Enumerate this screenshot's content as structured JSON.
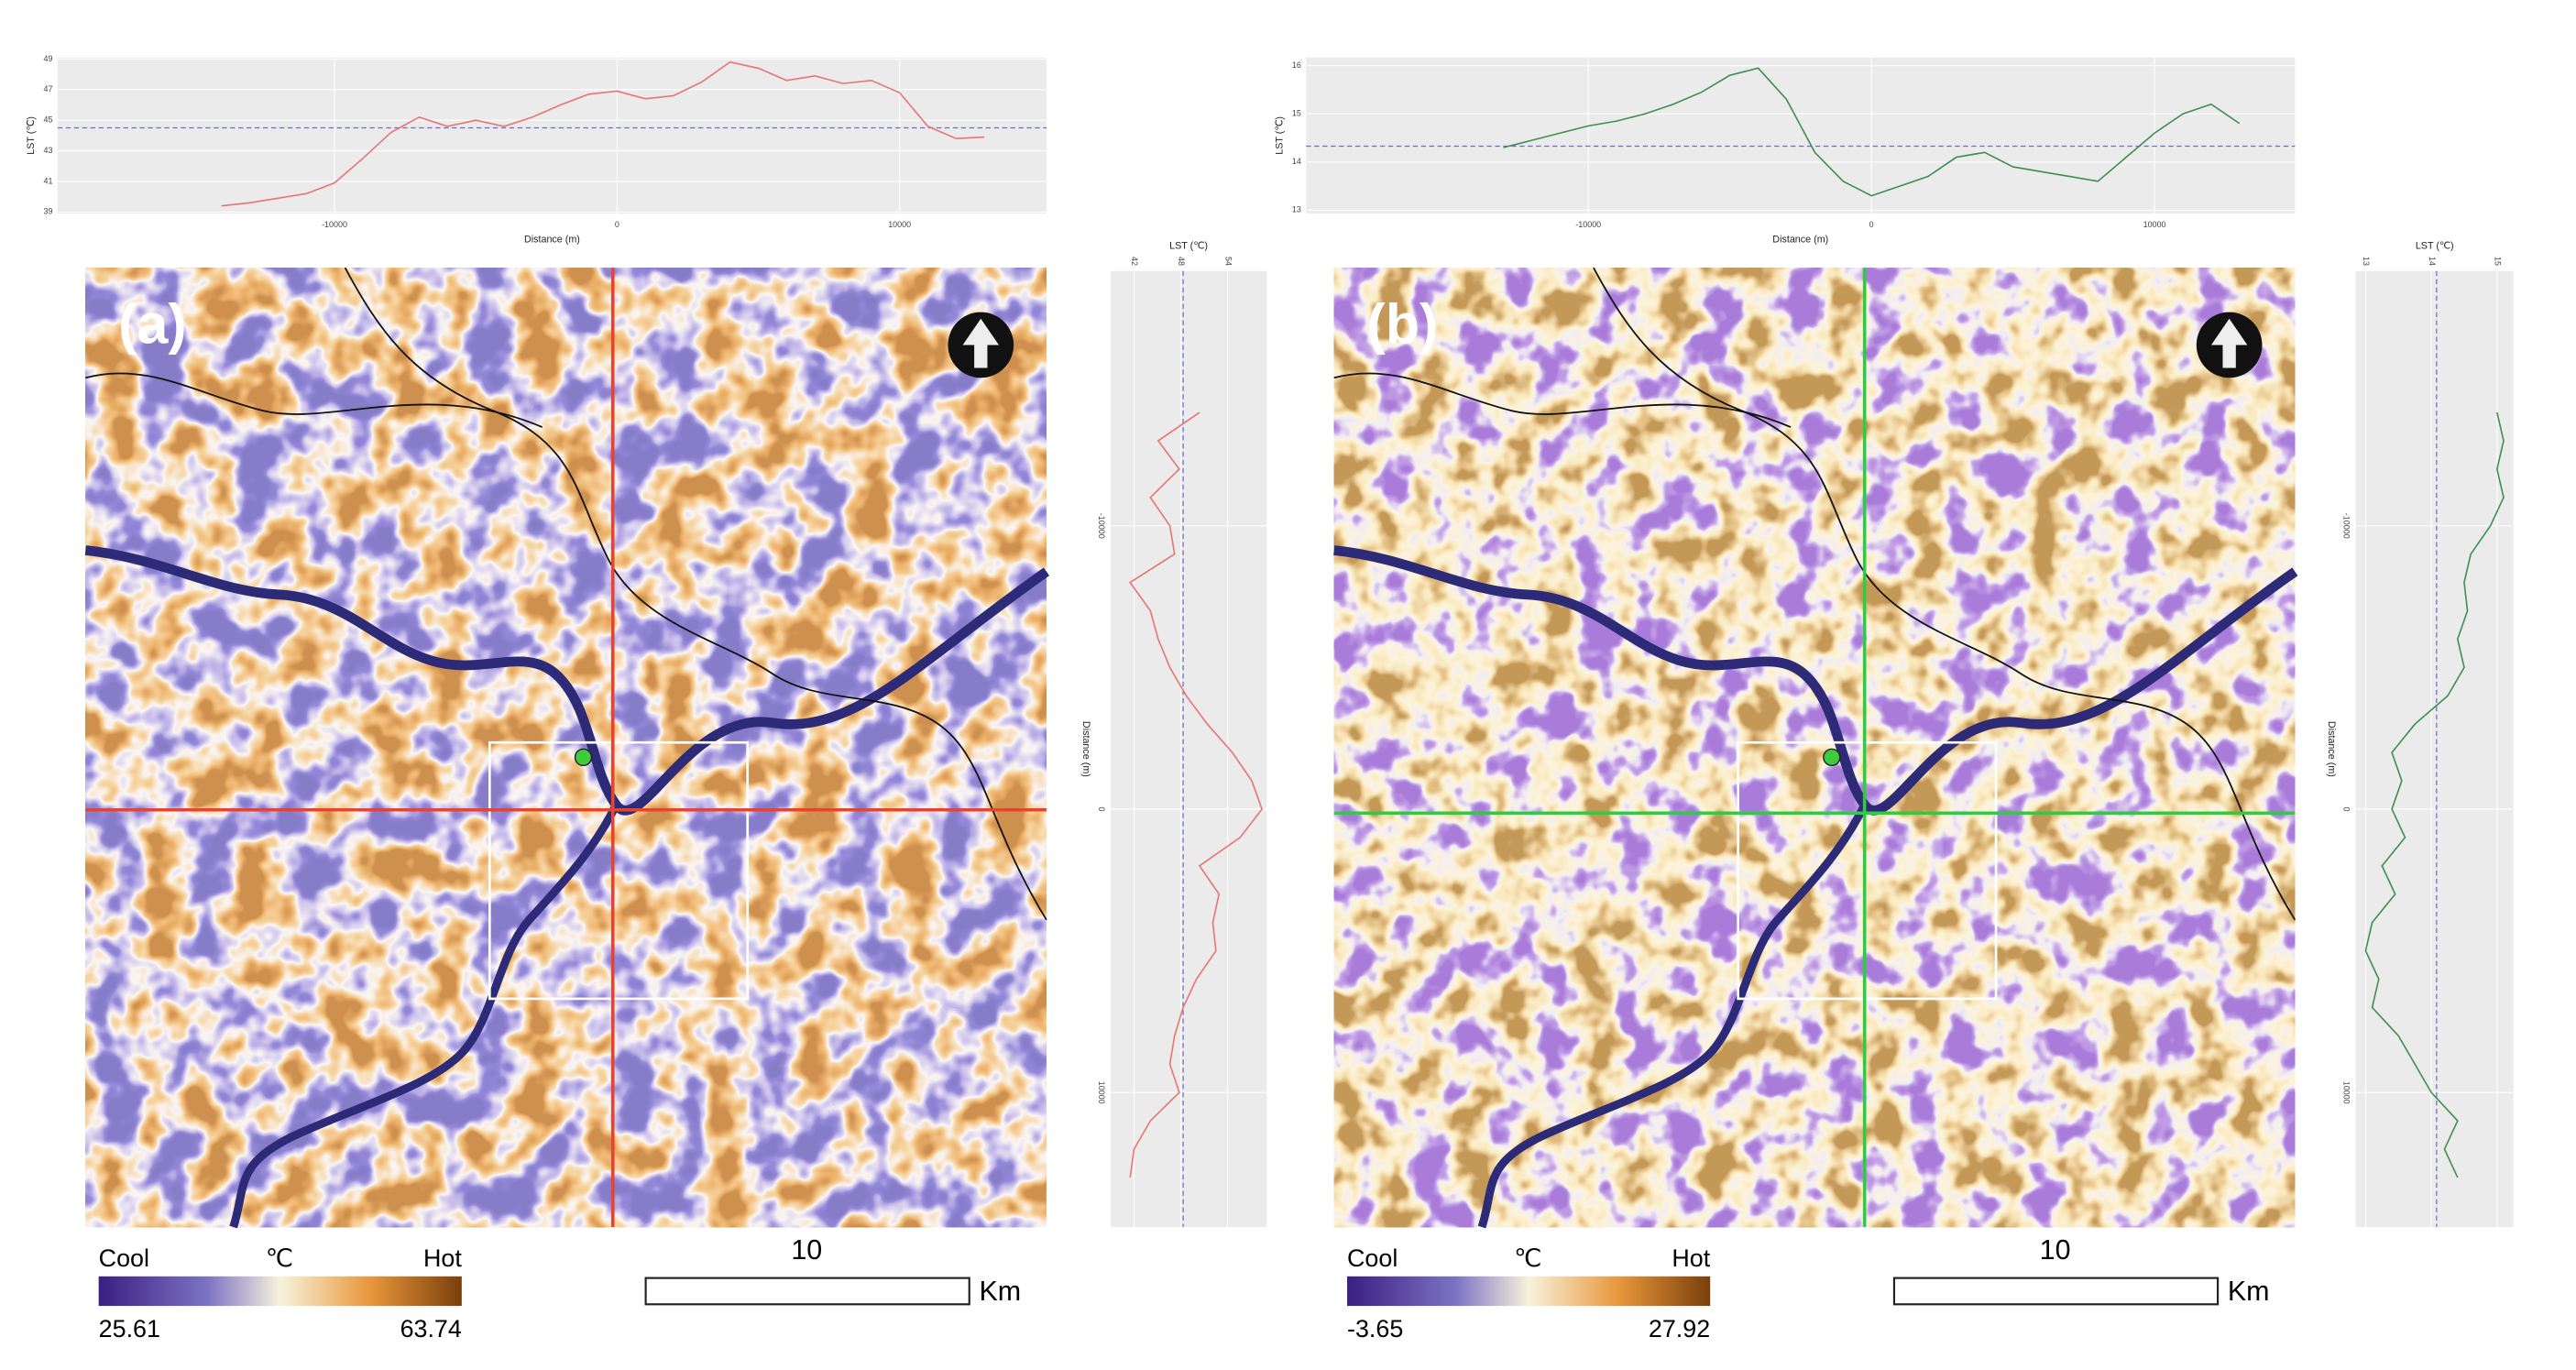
{
  "panels": [
    {
      "label": "(a)",
      "profile_top": {
        "type": "line",
        "orientation": "horizontal",
        "xlabel": "Distance (m)",
        "ylabel": "LST (℃)",
        "color": "#e87474",
        "x": [
          -14000,
          -13000,
          -12000,
          -11000,
          -10000,
          -9000,
          -8000,
          -7000,
          -6000,
          -5000,
          -4000,
          -3000,
          -2000,
          -1000,
          0,
          1000,
          2000,
          3000,
          4000,
          5000,
          6000,
          7000,
          8000,
          9000,
          10000,
          11000,
          12000,
          13000
        ],
        "values": [
          39.4,
          39.6,
          39.9,
          40.2,
          40.9,
          42.5,
          44.2,
          45.2,
          44.6,
          45.0,
          44.6,
          45.2,
          46.0,
          46.7,
          46.9,
          46.4,
          46.6,
          47.5,
          48.8,
          48.4,
          47.6,
          47.9,
          47.4,
          47.6,
          46.8,
          44.6,
          43.8,
          43.9
        ],
        "xlim": [
          -19800,
          15200
        ],
        "xticks": [
          -10000,
          0,
          10000
        ],
        "ylim": [
          38.9,
          49.1
        ],
        "yticks": [
          39,
          41,
          43,
          45,
          47,
          49
        ],
        "hline": 44.5,
        "grid": true
      },
      "profile_side": {
        "type": "line",
        "orientation": "vertical",
        "xlabel": "Distance (m)",
        "ylabel": "LST (℃)",
        "color": "#e87474",
        "x": [
          -14000,
          -13000,
          -12000,
          -11000,
          -10000,
          -9000,
          -8000,
          -7000,
          -6000,
          -5000,
          -4000,
          -3000,
          -2000,
          -1000,
          0,
          1000,
          2000,
          3000,
          4000,
          5000,
          6000,
          7000,
          8000,
          9000,
          10000,
          11000,
          12000,
          13000
        ],
        "values": [
          50.4,
          45.1,
          47.8,
          44.1,
          46.6,
          47.2,
          41.5,
          44.1,
          45.1,
          46.6,
          48.7,
          51.4,
          54.6,
          57.1,
          58.4,
          55.6,
          50.4,
          52.9,
          52.1,
          52.5,
          50.0,
          48.3,
          47.2,
          46.6,
          47.8,
          44.1,
          42.0,
          41.5
        ],
        "xlim": [
          -18990,
          14750
        ],
        "xticks": [
          -10000,
          0,
          10000
        ],
        "ylim": [
          39,
          59
        ],
        "yticks": [
          42,
          48,
          54
        ],
        "hline": 48.3,
        "grid": true
      },
      "legend": {
        "low": "Cool",
        "unit": "℃",
        "high": "Hot",
        "min": "25.61",
        "max": "63.74"
      },
      "scale_bar": {
        "value": "10",
        "unit": "Km"
      }
    },
    {
      "label": "(b)",
      "profile_top": {
        "type": "line",
        "orientation": "horizontal",
        "xlabel": "Distance (m)",
        "ylabel": "LST (℃)",
        "color": "#3f8f4f",
        "x": [
          -13000,
          -12000,
          -11000,
          -10000,
          -9000,
          -8000,
          -7000,
          -6000,
          -5000,
          -4000,
          -3000,
          -2000,
          -1000,
          0,
          1000,
          2000,
          3000,
          4000,
          5000,
          6000,
          7000,
          8000,
          9000,
          10000,
          11000,
          12000,
          13000
        ],
        "values": [
          14.3,
          14.45,
          14.6,
          14.75,
          14.85,
          15.0,
          15.2,
          15.45,
          15.8,
          15.95,
          15.3,
          14.2,
          13.6,
          13.3,
          13.5,
          13.7,
          14.1,
          14.2,
          13.9,
          13.8,
          13.7,
          13.6,
          14.1,
          14.6,
          15.0,
          15.2,
          14.8
        ],
        "xlim": [
          -19970,
          14960
        ],
        "xticks": [
          -10000,
          0,
          10000
        ],
        "ylim": [
          12.93,
          16.17
        ],
        "yticks": [
          13,
          14,
          15,
          16
        ],
        "hline": 14.33,
        "grid": true
      },
      "profile_side": {
        "type": "line",
        "orientation": "vertical",
        "xlabel": "Distance (m)",
        "ylabel": "LST (℃)",
        "color": "#3f8f4f",
        "x": [
          -14000,
          -13000,
          -12000,
          -11000,
          -10000,
          -9000,
          -8000,
          -7000,
          -6000,
          -5000,
          -4000,
          -3000,
          -2000,
          -1000,
          0,
          1000,
          2000,
          3000,
          4000,
          5000,
          6000,
          7000,
          8000,
          9000,
          10000,
          11000,
          12000,
          13000
        ],
        "values": [
          15.0,
          15.1,
          15.0,
          15.1,
          14.9,
          14.6,
          14.5,
          14.55,
          14.4,
          14.5,
          14.25,
          13.75,
          13.4,
          13.55,
          13.4,
          13.6,
          13.25,
          13.45,
          13.1,
          13.0,
          13.2,
          13.1,
          13.5,
          13.75,
          14.0,
          14.4,
          14.2,
          14.4
        ],
        "xlim": [
          -18990,
          14750
        ],
        "xticks": [
          -10000,
          0,
          10000
        ],
        "ylim": [
          12.85,
          15.25
        ],
        "yticks": [
          13,
          14,
          15
        ],
        "hline": 14.08,
        "grid": true
      },
      "legend": {
        "low": "Cool",
        "unit": "℃",
        "high": "Hot",
        "min": "-3.65",
        "max": "27.92"
      },
      "scale_bar": {
        "value": "10",
        "unit": "Km"
      }
    }
  ]
}
